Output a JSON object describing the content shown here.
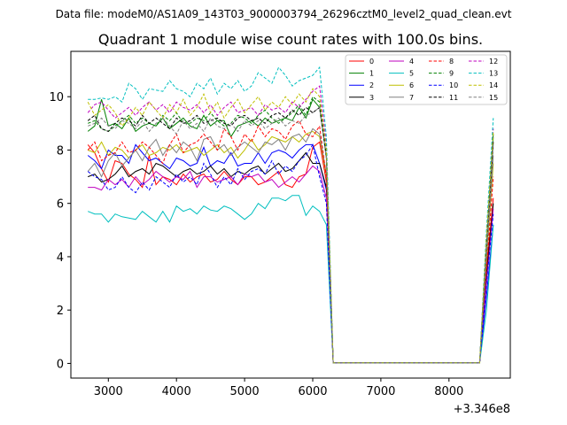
{
  "figure": {
    "suptitle": "Data file: modeM0/AS1A09_143T03_9000003794_26296cztM0_level2_quad_clean.evt",
    "title": "Quadrant 1 module wise count rates with 100.0s bins.",
    "x_offset_label": "+3.346e8"
  },
  "chart_data": {
    "type": "line",
    "title": "Quadrant 1 module wise count rates with 100.0s bins.",
    "xlabel": "",
    "ylabel": "",
    "x_offset": 334600000,
    "xlim": [
      2450,
      8900
    ],
    "ylim": [
      -0.55,
      11.7
    ],
    "x_ticks": [
      3000,
      4000,
      5000,
      6000,
      7000,
      8000
    ],
    "y_ticks": [
      0,
      2,
      4,
      6,
      8,
      10
    ],
    "grid": false,
    "legend": {
      "position": "top-right",
      "columns": 4
    },
    "x": [
      2700,
      2800,
      2900,
      3000,
      3100,
      3200,
      3300,
      3400,
      3500,
      3600,
      3700,
      3800,
      3900,
      4000,
      4100,
      4200,
      4300,
      4400,
      4500,
      4600,
      4700,
      4800,
      4900,
      5000,
      5100,
      5200,
      5300,
      5400,
      5500,
      5600,
      5700,
      5800,
      5900,
      6000,
      6100,
      6200,
      6300,
      8450,
      8550,
      8650
    ],
    "series": [
      {
        "name": "0",
        "color": "#ff0000",
        "dash": false,
        "values": [
          8.2,
          7.9,
          7.3,
          6.8,
          7.6,
          7.5,
          7.1,
          6.9,
          6.6,
          7.8,
          6.7,
          7.0,
          6.9,
          6.7,
          7.1,
          6.8,
          7.0,
          7.1,
          6.8,
          6.9,
          7.2,
          6.9,
          6.7,
          7.0,
          7.0,
          6.7,
          6.8,
          7.0,
          7.2,
          6.7,
          6.6,
          7.0,
          7.1,
          8.1,
          8.3,
          6.8,
          0.02,
          0.02,
          3.5,
          6.2
        ]
      },
      {
        "name": "1",
        "color": "#008000",
        "dash": false,
        "values": [
          8.7,
          8.9,
          9.9,
          8.9,
          9.0,
          8.8,
          9.2,
          8.7,
          8.9,
          9.0,
          8.9,
          9.2,
          8.8,
          9.0,
          9.2,
          8.9,
          8.8,
          9.3,
          8.9,
          9.1,
          9.1,
          8.5,
          8.9,
          9.0,
          9.1,
          8.9,
          9.2,
          9.0,
          9.1,
          9.2,
          9.1,
          9.6,
          9.2,
          9.9,
          9.6,
          7.7,
          0.02,
          0.02,
          4.5,
          8.6
        ]
      },
      {
        "name": "2",
        "color": "#0000ff",
        "dash": false,
        "values": [
          7.8,
          7.6,
          7.3,
          8.0,
          7.8,
          7.8,
          7.5,
          8.2,
          7.9,
          7.6,
          7.7,
          7.5,
          7.3,
          7.7,
          7.6,
          7.4,
          7.5,
          8.1,
          7.4,
          7.6,
          7.5,
          7.9,
          7.4,
          7.5,
          7.5,
          7.9,
          7.5,
          7.9,
          8.0,
          7.9,
          7.7,
          8.0,
          8.2,
          8.2,
          7.5,
          6.5,
          0.02,
          0.02,
          2.5,
          5.2
        ]
      },
      {
        "name": "3",
        "color": "#000000",
        "dash": false,
        "values": [
          7.0,
          7.1,
          6.8,
          6.9,
          7.1,
          7.4,
          7.0,
          7.2,
          7.3,
          7.1,
          7.5,
          7.4,
          7.2,
          7.0,
          7.2,
          7.3,
          7.1,
          7.2,
          7.4,
          7.1,
          7.3,
          7.0,
          7.2,
          7.1,
          7.3,
          7.4,
          7.1,
          7.3,
          7.5,
          7.2,
          7.3,
          7.6,
          7.9,
          7.5,
          7.5,
          6.6,
          0.02,
          0.02,
          3.3,
          6.0
        ]
      },
      {
        "name": "4",
        "color": "#bf00bf",
        "dash": false,
        "values": [
          6.6,
          6.6,
          6.5,
          6.9,
          6.7,
          6.9,
          6.6,
          7.0,
          6.7,
          6.9,
          7.2,
          7.0,
          6.8,
          7.0,
          6.9,
          7.2,
          6.6,
          7.0,
          7.0,
          6.8,
          6.9,
          7.0,
          6.7,
          7.1,
          7.0,
          7.1,
          6.8,
          6.9,
          6.6,
          6.8,
          7.0,
          6.8,
          7.1,
          7.4,
          7.2,
          6.2,
          0.02,
          0.02,
          3.0,
          5.8
        ]
      },
      {
        "name": "5",
        "color": "#00bfbf",
        "dash": false,
        "values": [
          5.7,
          5.6,
          5.6,
          5.3,
          5.6,
          5.5,
          5.45,
          5.4,
          5.7,
          5.5,
          5.3,
          5.7,
          5.3,
          5.9,
          5.7,
          5.8,
          5.6,
          5.9,
          5.75,
          5.7,
          5.9,
          5.8,
          5.6,
          5.4,
          5.6,
          6.0,
          5.8,
          6.2,
          6.2,
          6.1,
          6.3,
          6.3,
          5.55,
          5.9,
          5.7,
          5.2,
          0.02,
          0.02,
          2.0,
          5.2
        ]
      },
      {
        "name": "6",
        "color": "#bfbf00",
        "dash": false,
        "values": [
          8.0,
          7.9,
          8.3,
          7.8,
          8.1,
          8.0,
          7.7,
          8.0,
          8.2,
          7.8,
          7.9,
          8.1,
          8.0,
          8.2,
          7.9,
          8.0,
          8.1,
          7.8,
          8.0,
          8.2,
          7.9,
          8.1,
          7.7,
          8.0,
          8.4,
          8.0,
          8.2,
          8.5,
          8.4,
          8.3,
          8.5,
          8.3,
          8.6,
          8.7,
          8.5,
          7.0,
          0.02,
          0.02,
          3.8,
          7.5
        ]
      },
      {
        "name": "7",
        "color": "#808080",
        "dash": false,
        "values": [
          7.2,
          7.5,
          7.0,
          7.6,
          7.9,
          7.4,
          7.7,
          8.0,
          7.6,
          8.1,
          8.4,
          7.8,
          8.2,
          7.9,
          8.3,
          8.1,
          7.6,
          8.4,
          8.5,
          8.0,
          8.2,
          7.8,
          8.1,
          8.3,
          8.1,
          7.9,
          8.3,
          8.2,
          8.4,
          8.0,
          8.5,
          8.6,
          8.3,
          8.8,
          8.6,
          7.1,
          0.02,
          0.02,
          4.0,
          7.8
        ]
      },
      {
        "name": "8",
        "color": "#ff0000",
        "dash": true,
        "values": [
          8.0,
          8.3,
          7.6,
          7.8,
          7.9,
          8.3,
          7.9,
          8.0,
          8.3,
          8.1,
          7.8,
          7.5,
          8.2,
          8.6,
          7.9,
          8.2,
          8.3,
          8.6,
          8.3,
          8.0,
          8.8,
          8.5,
          8.0,
          8.6,
          8.3,
          8.9,
          8.5,
          8.8,
          8.7,
          8.4,
          8.9,
          9.1,
          8.6,
          8.5,
          8.9,
          7.0,
          0.02,
          0.02,
          3.5,
          7.0
        ]
      },
      {
        "name": "9",
        "color": "#008000",
        "dash": true,
        "values": [
          9.0,
          9.1,
          8.8,
          8.7,
          8.9,
          9.1,
          9.3,
          9.0,
          9.2,
          9.0,
          8.9,
          9.3,
          9.1,
          9.4,
          9.0,
          9.0,
          9.2,
          9.1,
          9.4,
          9.1,
          8.9,
          9.0,
          9.3,
          9.2,
          9.0,
          9.3,
          9.5,
          9.2,
          9.0,
          9.2,
          9.4,
          9.7,
          9.3,
          10.0,
          9.8,
          7.9,
          0.02,
          0.02,
          4.6,
          8.5
        ]
      },
      {
        "name": "10",
        "color": "#0000ff",
        "dash": true,
        "values": [
          7.2,
          7.0,
          6.9,
          6.5,
          6.6,
          7.0,
          6.6,
          6.4,
          6.8,
          6.5,
          7.0,
          6.8,
          6.6,
          7.1,
          6.8,
          7.0,
          6.7,
          7.5,
          7.1,
          6.6,
          7.0,
          6.7,
          7.3,
          6.9,
          7.2,
          7.3,
          7.1,
          7.6,
          7.1,
          7.4,
          7.2,
          7.6,
          7.8,
          8.2,
          7.0,
          6.0,
          0.02,
          0.02,
          3.0,
          5.6
        ]
      },
      {
        "name": "11",
        "color": "#000000",
        "dash": true,
        "values": [
          9.1,
          9.3,
          8.8,
          8.7,
          9.0,
          9.2,
          9.1,
          8.9,
          9.3,
          9.0,
          9.2,
          9.0,
          8.8,
          9.2,
          9.0,
          9.1,
          9.3,
          9.0,
          9.1,
          9.2,
          9.0,
          8.9,
          9.2,
          9.3,
          9.1,
          9.2,
          9.0,
          9.3,
          9.4,
          9.2,
          9.5,
          9.3,
          9.6,
          9.4,
          9.6,
          7.8,
          0.02,
          0.02,
          4.4,
          8.3
        ]
      },
      {
        "name": "12",
        "color": "#bf00bf",
        "dash": true,
        "values": [
          9.4,
          9.7,
          9.8,
          9.5,
          9.2,
          9.4,
          9.6,
          9.3,
          9.6,
          9.8,
          9.5,
          9.7,
          9.4,
          9.8,
          9.6,
          9.5,
          9.7,
          9.4,
          9.7,
          9.3,
          9.6,
          9.8,
          9.4,
          9.5,
          9.6,
          9.3,
          9.7,
          9.5,
          9.6,
          9.4,
          9.8,
          9.6,
          9.9,
          10.2,
          10.4,
          8.2,
          0.02,
          0.02,
          4.8,
          8.8
        ]
      },
      {
        "name": "13",
        "color": "#00bfbf",
        "dash": true,
        "values": [
          9.9,
          9.9,
          9.95,
          9.9,
          10.0,
          9.8,
          10.5,
          10.3,
          9.9,
          10.3,
          10.25,
          10.2,
          10.6,
          10.3,
          10.2,
          10.0,
          10.5,
          10.3,
          10.7,
          10.1,
          10.5,
          10.3,
          10.6,
          10.2,
          10.4,
          10.9,
          10.7,
          10.5,
          11.1,
          10.8,
          10.4,
          10.6,
          10.7,
          10.8,
          11.1,
          8.5,
          0.02,
          0.02,
          5.0,
          9.2
        ]
      },
      {
        "name": "14",
        "color": "#bfbf00",
        "dash": true,
        "values": [
          9.8,
          9.3,
          9.5,
          9.7,
          9.4,
          8.9,
          9.2,
          9.6,
          9.3,
          9.8,
          9.5,
          9.2,
          9.7,
          9.4,
          9.9,
          9.3,
          9.6,
          10.1,
          9.4,
          9.8,
          9.2,
          9.6,
          9.9,
          9.4,
          9.7,
          10.0,
          9.5,
          9.8,
          9.6,
          10.0,
          9.7,
          10.1,
          9.8,
          10.3,
          10.0,
          8.0,
          0.02,
          0.02,
          4.7,
          8.7
        ]
      },
      {
        "name": "15",
        "color": "#808080",
        "dash": true,
        "values": [
          8.9,
          9.0,
          9.2,
          8.9,
          8.8,
          9.1,
          9.0,
          8.8,
          9.1,
          8.7,
          9.0,
          9.2,
          8.9,
          8.6,
          9.1,
          8.8,
          9.0,
          8.7,
          9.2,
          8.9,
          8.8,
          9.0,
          8.7,
          9.1,
          8.9,
          9.1,
          8.8,
          9.0,
          9.2,
          8.9,
          9.1,
          9.0,
          9.3,
          9.4,
          9.6,
          7.7,
          0.02,
          0.02,
          4.3,
          8.2
        ]
      }
    ]
  }
}
